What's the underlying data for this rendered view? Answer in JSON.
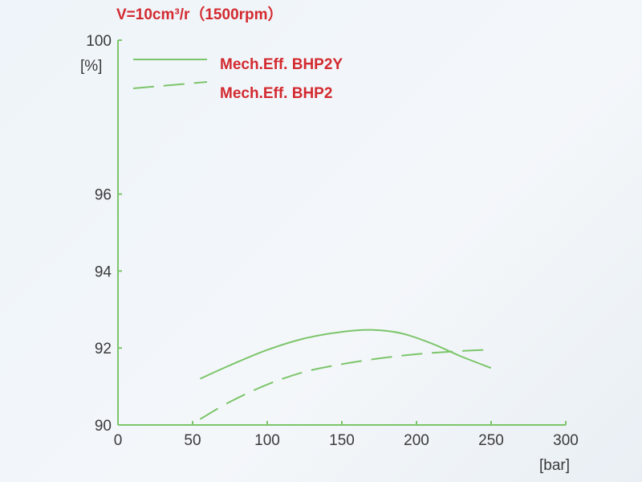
{
  "chart_data": {
    "type": "line",
    "title": "V=10cm³/r（1500rpm）",
    "ylabel": "[%]",
    "xlabel": "[bar]",
    "xlim": [
      0,
      300
    ],
    "ylim": [
      90,
      100
    ],
    "xticks": [
      0,
      50,
      100,
      150,
      200,
      250,
      300
    ],
    "xtick_labels": [
      "0",
      "50",
      "100",
      "150",
      "200",
      "250",
      "300"
    ],
    "yticks": [
      90,
      92,
      94,
      96,
      100
    ],
    "ytick_labels": [
      "90",
      "92",
      "94",
      "96",
      "100"
    ],
    "grid": false,
    "legend_position": "top-left",
    "series": [
      {
        "name": "Mech.Eff. BHP2Y",
        "style": "solid",
        "color": "#7cc56a",
        "x": [
          55,
          75,
          100,
          125,
          150,
          170,
          190,
          210,
          230,
          250
        ],
        "y": [
          91.2,
          91.55,
          91.95,
          92.25,
          92.42,
          92.47,
          92.38,
          92.12,
          91.78,
          91.48
        ]
      },
      {
        "name": "Mech.Eff. BHP2",
        "style": "dashed",
        "color": "#7cc56a",
        "x": [
          55,
          75,
          100,
          125,
          150,
          175,
          200,
          225,
          250
        ],
        "y": [
          90.15,
          90.6,
          91.05,
          91.38,
          91.58,
          91.73,
          91.84,
          91.91,
          91.96
        ]
      }
    ],
    "colors": {
      "axis": "#7cc56a",
      "title": "#d32a2f",
      "legend_text": "#d32a2f",
      "tick_text": "#3a3a3a"
    }
  }
}
